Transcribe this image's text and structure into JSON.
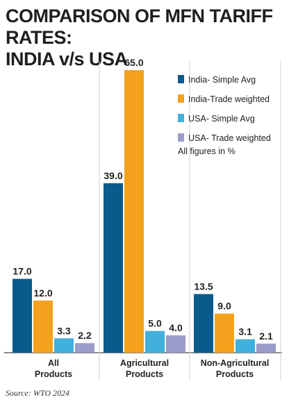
{
  "title_lines": [
    "COMPARISON OF MFN TARIFF RATES:",
    "INDIA v/s USA"
  ],
  "source": "Source: WTO 2024",
  "note": "All figures in %",
  "colors": {
    "india_simple": "#0b5a8c",
    "india_trade": "#f4a11d",
    "usa_simple": "#42b0dd",
    "usa_trade": "#9b9cc9",
    "text": "#222222",
    "axis": "#444444"
  },
  "chart_data": {
    "type": "bar",
    "categories": [
      "All\nProducts",
      "Agricultural\nProducts",
      "Non-Agricultural\nProducts"
    ],
    "series": [
      {
        "name": "India- Simple Avg",
        "color": "#0b5a8c",
        "values": [
          17.0,
          39.0,
          13.5
        ]
      },
      {
        "name": "India-Trade weighted",
        "color": "#f4a11d",
        "values": [
          12.0,
          65.0,
          9.0
        ]
      },
      {
        "name": "USA- Simple Avg",
        "color": "#42b0dd",
        "values": [
          3.3,
          5.0,
          3.1
        ]
      },
      {
        "name": "USA- Trade weighted",
        "color": "#9b9cc9",
        "values": [
          2.2,
          4.0,
          2.1
        ]
      }
    ],
    "ylim": [
      0,
      65
    ],
    "legend": "top-right",
    "grid": false,
    "data_labels": true
  }
}
